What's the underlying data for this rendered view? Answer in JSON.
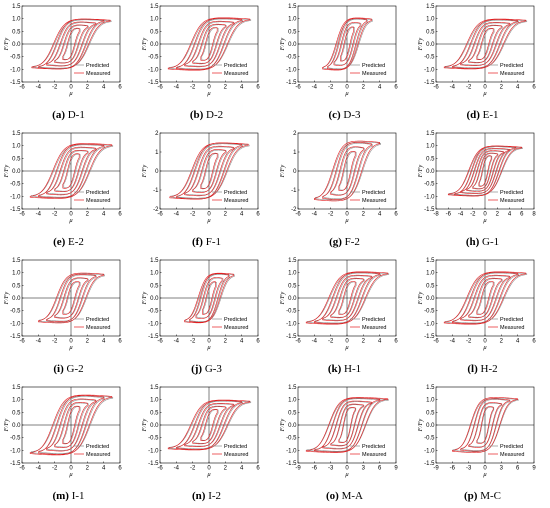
{
  "legend": {
    "predicted": "Predicted",
    "measured": "Measured"
  },
  "colors": {
    "predicted": "#8a8a8a",
    "measured": "#e41a1c"
  },
  "chart_data": [
    {
      "type": "line",
      "caption_letter": "(a)",
      "caption_name": "D-1",
      "xlabel": "μ",
      "ylabel": "F/Fy",
      "xlim": [
        -6,
        6
      ],
      "ylim": [
        -1.5,
        1.5
      ],
      "xticks": [
        -6,
        -4,
        -2,
        0,
        2,
        4,
        6
      ],
      "yticks": [
        -1.5,
        -1.0,
        -0.5,
        0,
        0.5,
        1.0,
        1.5
      ],
      "series": [
        {
          "name": "Predicted",
          "amplitudes": [
            1,
            2,
            3,
            4,
            4.8
          ]
        },
        {
          "name": "Measured",
          "amplitudes": [
            1,
            2,
            3,
            4,
            4.8
          ]
        }
      ],
      "peak": 1.0
    },
    {
      "type": "line",
      "caption_letter": "(b)",
      "caption_name": "D-2",
      "xlabel": "μ",
      "ylabel": "F/Fy",
      "xlim": [
        -6,
        6
      ],
      "ylim": [
        -1.5,
        1.5
      ],
      "xticks": [
        -6,
        -4,
        -2,
        0,
        2,
        4,
        6
      ],
      "yticks": [
        -1.5,
        -1.0,
        -0.5,
        0,
        0.5,
        1.0,
        1.5
      ],
      "series": [
        {
          "name": "Predicted",
          "amplitudes": [
            1,
            2,
            3,
            4,
            5
          ]
        },
        {
          "name": "Measured",
          "amplitudes": [
            1,
            2,
            3,
            4,
            5
          ]
        }
      ],
      "peak": 1.05
    },
    {
      "type": "line",
      "caption_letter": "(c)",
      "caption_name": "D-3",
      "xlabel": "μ",
      "ylabel": "F/Fy",
      "xlim": [
        -6,
        6
      ],
      "ylim": [
        -1.5,
        1.5
      ],
      "xticks": [
        -6,
        -4,
        -2,
        0,
        2,
        4,
        6
      ],
      "yticks": [
        -1.5,
        -1.0,
        -0.5,
        0,
        0.5,
        1.0,
        1.5
      ],
      "series": [
        {
          "name": "Predicted",
          "amplitudes": [
            0.8,
            1.6,
            2.4,
            3
          ]
        },
        {
          "name": "Measured",
          "amplitudes": [
            0.8,
            1.6,
            2.4,
            3
          ]
        }
      ],
      "peak": 1.05
    },
    {
      "type": "line",
      "caption_letter": "(d)",
      "caption_name": "E-1",
      "xlabel": "μ",
      "ylabel": "F/Fy",
      "xlim": [
        -6,
        6
      ],
      "ylim": [
        -1.5,
        1.5
      ],
      "xticks": [
        -6,
        -4,
        -2,
        0,
        2,
        4,
        6
      ],
      "yticks": [
        -1.5,
        -1.0,
        -0.5,
        0,
        0.5,
        1.0,
        1.5
      ],
      "series": [
        {
          "name": "Predicted",
          "amplitudes": [
            1,
            2,
            3,
            4,
            5
          ]
        },
        {
          "name": "Measured",
          "amplitudes": [
            1,
            2,
            3,
            4,
            5
          ]
        }
      ],
      "peak": 1.0
    },
    {
      "type": "line",
      "caption_letter": "(e)",
      "caption_name": "E-2",
      "xlabel": "μ",
      "ylabel": "F/Fy",
      "xlim": [
        -6,
        6
      ],
      "ylim": [
        -1.5,
        1.5
      ],
      "xticks": [
        -6,
        -4,
        -2,
        0,
        2,
        4,
        6
      ],
      "yticks": [
        -1.5,
        -1.0,
        -0.5,
        0,
        0.5,
        1.0,
        1.5
      ],
      "series": [
        {
          "name": "Predicted",
          "amplitudes": [
            1,
            2,
            3,
            4,
            5
          ]
        },
        {
          "name": "Measured",
          "amplitudes": [
            1,
            2,
            3,
            4,
            5
          ]
        }
      ],
      "peak": 1.1
    },
    {
      "type": "line",
      "caption_letter": "(f)",
      "caption_name": "F-1",
      "xlabel": "μ",
      "ylabel": "F/Fy",
      "xlim": [
        -6,
        6
      ],
      "ylim": [
        -2,
        2
      ],
      "xticks": [
        -6,
        -4,
        -2,
        0,
        2,
        4,
        6
      ],
      "yticks": [
        -2,
        -1,
        0,
        1,
        2
      ],
      "series": [
        {
          "name": "Predicted",
          "amplitudes": [
            1,
            2,
            3,
            4,
            4.8
          ]
        },
        {
          "name": "Measured",
          "amplitudes": [
            1,
            2,
            3,
            4,
            4.8
          ]
        }
      ],
      "peak": 1.5
    },
    {
      "type": "line",
      "caption_letter": "(g)",
      "caption_name": "F-2",
      "xlabel": "μ",
      "ylabel": "F/Fy",
      "xlim": [
        -6,
        6
      ],
      "ylim": [
        -2,
        2
      ],
      "xticks": [
        -6,
        -4,
        -2,
        0,
        2,
        4,
        6
      ],
      "yticks": [
        -2,
        -1,
        0,
        1,
        2
      ],
      "series": [
        {
          "name": "Predicted",
          "amplitudes": [
            1,
            2,
            3,
            4
          ]
        },
        {
          "name": "Measured",
          "amplitudes": [
            1,
            2,
            3,
            4
          ]
        }
      ],
      "peak": 1.6
    },
    {
      "type": "line",
      "caption_letter": "(h)",
      "caption_name": "G-1",
      "xlabel": "μ",
      "ylabel": "F/Fy",
      "xlim": [
        -8,
        8
      ],
      "ylim": [
        -1.5,
        1.5
      ],
      "xticks": [
        -8,
        -6,
        -4,
        -2,
        0,
        2,
        4,
        6,
        8
      ],
      "yticks": [
        -1.5,
        -1.0,
        -0.5,
        0,
        0.5,
        1.0,
        1.5
      ],
      "series": [
        {
          "name": "Predicted",
          "amplitudes": [
            1,
            2,
            3,
            4,
            5,
            6
          ]
        },
        {
          "name": "Measured",
          "amplitudes": [
            1,
            2,
            3,
            4,
            5,
            6
          ]
        }
      ],
      "peak": 1.0
    },
    {
      "type": "line",
      "caption_letter": "(i)",
      "caption_name": "G-2",
      "xlabel": "μ",
      "ylabel": "F/Fy",
      "xlim": [
        -6,
        6
      ],
      "ylim": [
        -1.5,
        1.5
      ],
      "xticks": [
        -6,
        -4,
        -2,
        0,
        2,
        4,
        6
      ],
      "yticks": [
        -1.5,
        -1.0,
        -0.5,
        0,
        0.5,
        1.0,
        1.5
      ],
      "series": [
        {
          "name": "Predicted",
          "amplitudes": [
            1,
            2,
            3,
            4
          ]
        },
        {
          "name": "Measured",
          "amplitudes": [
            1,
            2,
            3,
            4
          ]
        }
      ],
      "peak": 1.0
    },
    {
      "type": "line",
      "caption_letter": "(j)",
      "caption_name": "G-3",
      "xlabel": "μ",
      "ylabel": "F/Fy",
      "xlim": [
        -6,
        6
      ],
      "ylim": [
        -1.5,
        1.5
      ],
      "xticks": [
        -6,
        -4,
        -2,
        0,
        2,
        4,
        6
      ],
      "yticks": [
        -1.5,
        -1.0,
        -0.5,
        0,
        0.5,
        1.0,
        1.5
      ],
      "series": [
        {
          "name": "Predicted",
          "amplitudes": [
            0.8,
            1.6,
            2.4,
            3
          ]
        },
        {
          "name": "Measured",
          "amplitudes": [
            0.8,
            1.6,
            2.4,
            3
          ]
        }
      ],
      "peak": 1.0
    },
    {
      "type": "line",
      "caption_letter": "(k)",
      "caption_name": "H-1",
      "xlabel": "μ",
      "ylabel": "F/Fy",
      "xlim": [
        -6,
        6
      ],
      "ylim": [
        -1.5,
        1.5
      ],
      "xticks": [
        -6,
        -4,
        -2,
        0,
        2,
        4,
        6
      ],
      "yticks": [
        -1.5,
        -1.0,
        -0.5,
        0,
        0.5,
        1.0,
        1.5
      ],
      "series": [
        {
          "name": "Predicted",
          "amplitudes": [
            1,
            2,
            3,
            4,
            5
          ]
        },
        {
          "name": "Measured",
          "amplitudes": [
            1,
            2,
            3,
            4,
            5
          ]
        }
      ],
      "peak": 1.05
    },
    {
      "type": "line",
      "caption_letter": "(l)",
      "caption_name": "H-2",
      "xlabel": "μ",
      "ylabel": "F/Fy",
      "xlim": [
        -6,
        6
      ],
      "ylim": [
        -1.5,
        1.5
      ],
      "xticks": [
        -6,
        -4,
        -2,
        0,
        2,
        4,
        6
      ],
      "yticks": [
        -1.5,
        -1.0,
        -0.5,
        0,
        0.5,
        1.0,
        1.5
      ],
      "series": [
        {
          "name": "Predicted",
          "amplitudes": [
            1,
            2,
            3,
            4,
            5
          ]
        },
        {
          "name": "Measured",
          "amplitudes": [
            1,
            2,
            3,
            4,
            5
          ]
        }
      ],
      "peak": 1.05
    },
    {
      "type": "line",
      "caption_letter": "(m)",
      "caption_name": "I-1",
      "xlabel": "μ",
      "ylabel": "F/Fy",
      "xlim": [
        -6,
        6
      ],
      "ylim": [
        -1.5,
        1.5
      ],
      "xticks": [
        -6,
        -4,
        -2,
        0,
        2,
        4,
        6
      ],
      "yticks": [
        -1.5,
        -1.0,
        -0.5,
        0,
        0.5,
        1.0,
        1.5
      ],
      "series": [
        {
          "name": "Predicted",
          "amplitudes": [
            1,
            2,
            3,
            4,
            5
          ]
        },
        {
          "name": "Measured",
          "amplitudes": [
            1,
            2,
            3,
            4,
            5
          ]
        }
      ],
      "peak": 1.2
    },
    {
      "type": "line",
      "caption_letter": "(n)",
      "caption_name": "I-2",
      "xlabel": "μ",
      "ylabel": "F/Fy",
      "xlim": [
        -6,
        6
      ],
      "ylim": [
        -1.5,
        1.5
      ],
      "xticks": [
        -6,
        -4,
        -2,
        0,
        2,
        4,
        6
      ],
      "yticks": [
        -1.5,
        -1.0,
        -0.5,
        0,
        0.5,
        1.0,
        1.5
      ],
      "series": [
        {
          "name": "Predicted",
          "amplitudes": [
            1,
            2,
            3,
            4,
            5
          ]
        },
        {
          "name": "Measured",
          "amplitudes": [
            1,
            2,
            3,
            4,
            5
          ]
        }
      ],
      "peak": 1.0
    },
    {
      "type": "line",
      "caption_letter": "(o)",
      "caption_name": "M-A",
      "xlabel": "μ",
      "ylabel": "F/Fy",
      "xlim": [
        -9,
        9
      ],
      "ylim": [
        -1.5,
        1.5
      ],
      "xticks": [
        -9,
        -6,
        -3,
        0,
        3,
        6,
        9
      ],
      "yticks": [
        -1.5,
        -1.0,
        -0.5,
        0,
        0.5,
        1.0,
        1.5
      ],
      "series": [
        {
          "name": "Predicted",
          "amplitudes": [
            1.5,
            3,
            4.5,
            6,
            7.5
          ]
        },
        {
          "name": "Measured",
          "amplitudes": [
            1.5,
            3,
            4.5,
            6,
            7.5
          ]
        }
      ],
      "peak": 1.1
    },
    {
      "type": "line",
      "caption_letter": "(p)",
      "caption_name": "M-C",
      "xlabel": "μ",
      "ylabel": "F/Fy",
      "xlim": [
        -9,
        9
      ],
      "ylim": [
        -1.5,
        1.5
      ],
      "xticks": [
        -9,
        -6,
        -3,
        0,
        3,
        6,
        9
      ],
      "yticks": [
        -1.5,
        -1.0,
        -0.5,
        0,
        0.5,
        1.0,
        1.5
      ],
      "series": [
        {
          "name": "Predicted",
          "amplitudes": [
            1.5,
            3,
            4.5,
            6
          ]
        },
        {
          "name": "Measured",
          "amplitudes": [
            1.5,
            3,
            4.5,
            6
          ]
        }
      ],
      "peak": 1.1
    }
  ]
}
